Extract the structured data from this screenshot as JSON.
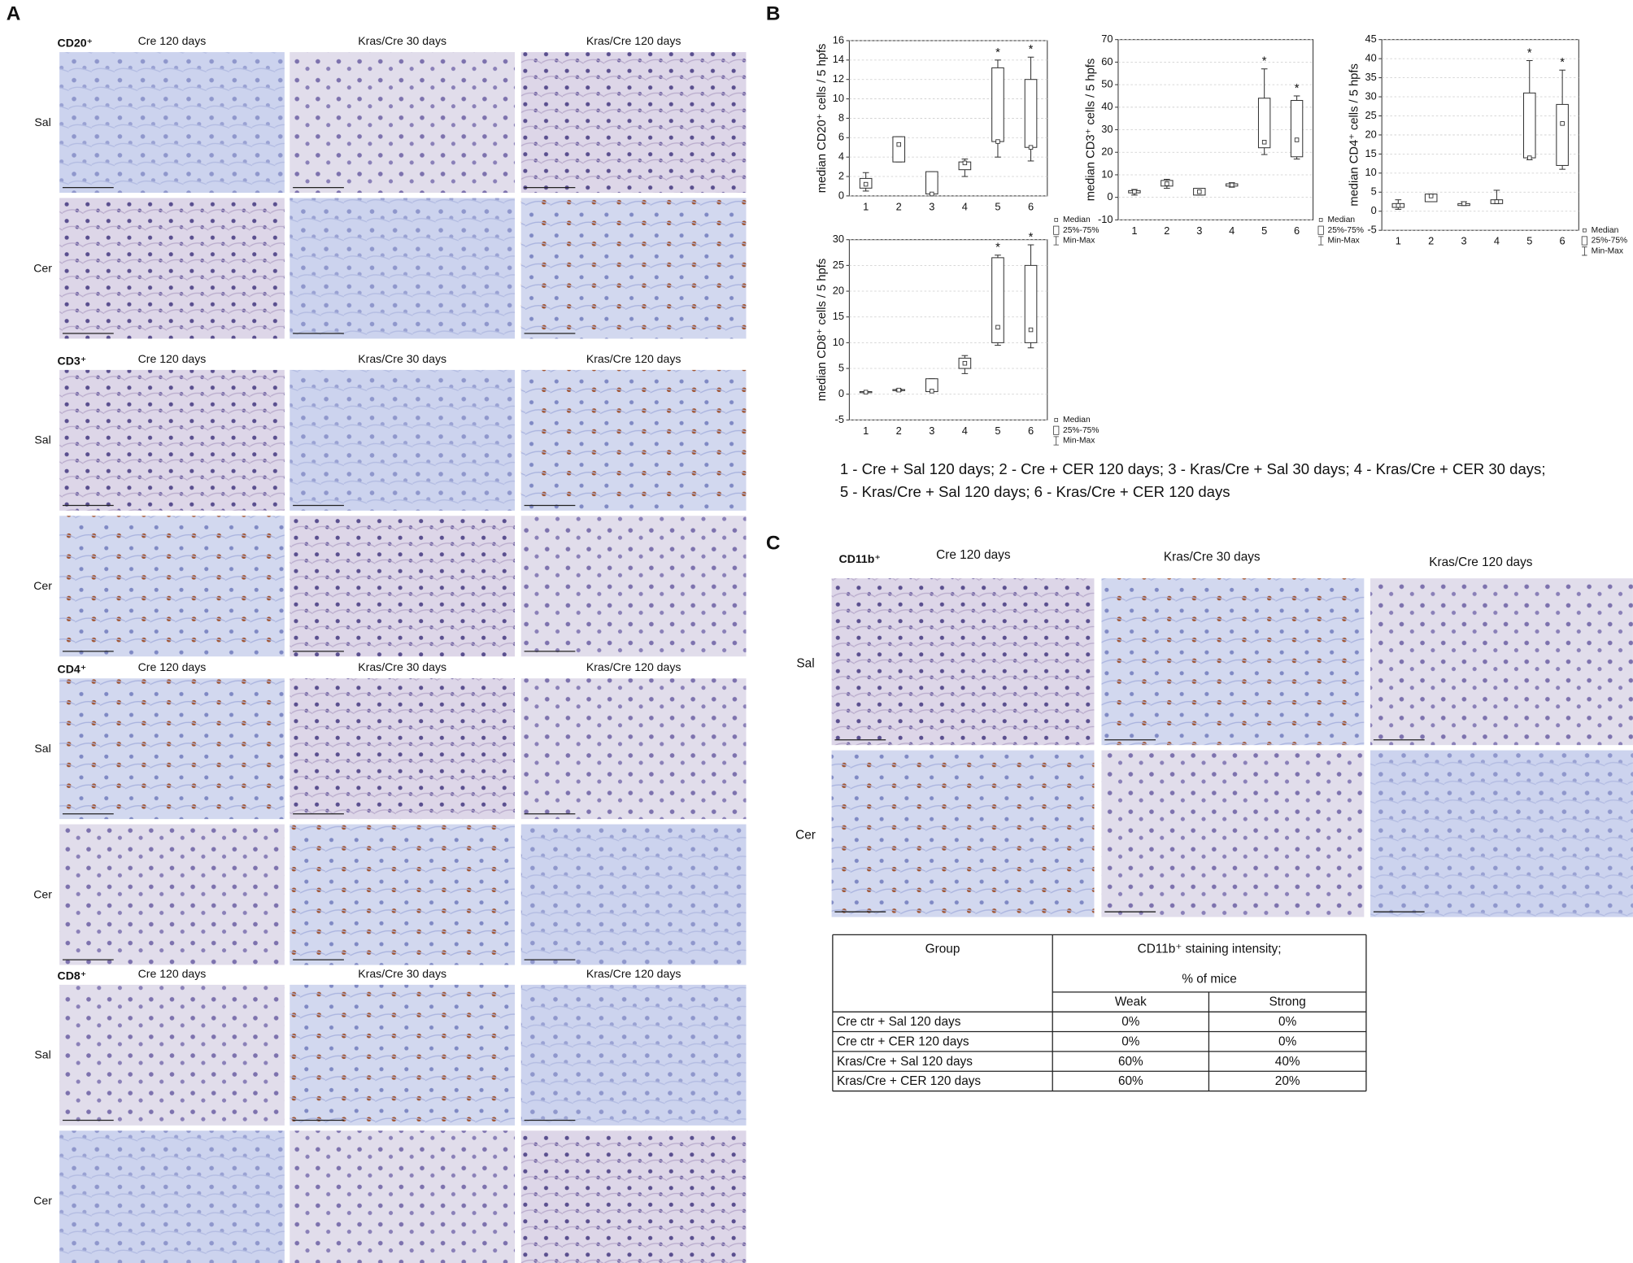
{
  "panel_a": {
    "label": "A",
    "sections": [
      {
        "marker": "CD20⁺",
        "columns": [
          "Cre 120 days",
          "Kras/Cre 30 days",
          "Kras/Cre 120 days"
        ],
        "rows": [
          "Sal",
          "Cer"
        ]
      },
      {
        "marker": "CD3⁺",
        "columns": [
          "Cre 120 days",
          "Kras/Cre 30 days",
          "Kras/Cre 120 days"
        ],
        "rows": [
          "Sal",
          "Cer"
        ]
      },
      {
        "marker": "CD4⁺",
        "columns": [
          "Cre 120 days",
          "Kras/Cre 30 days",
          "Kras/Cre 120 days"
        ],
        "rows": [
          "Sal",
          "Cer"
        ]
      },
      {
        "marker": "CD8⁺",
        "columns": [
          "Cre 120 days",
          "Kras/Cre 30 days",
          "Kras/Cre 120 days"
        ],
        "rows": [
          "Sal",
          "Cer"
        ]
      }
    ]
  },
  "panel_b": {
    "label": "B",
    "key": [
      "1 - Cre + Sal 120 days; 2 - Cre + CER 120 days;  3 - Kras/Cre + Sal 30 days; 4 - Kras/Cre + CER 30 days;",
      "5 - Kras/Cre + Sal 120 days; 6 - Kras/Cre + CER 120 days"
    ]
  },
  "chart_data": [
    {
      "type": "box",
      "ylabel": "median CD20⁺ cells / 5 hpfs",
      "categories": [
        "1",
        "2",
        "3",
        "4",
        "5",
        "6"
      ],
      "min": [
        0.5,
        3.5,
        0.2,
        2.0,
        4.0,
        3.6
      ],
      "q1": [
        0.8,
        3.5,
        0.2,
        2.7,
        5.6,
        5.0
      ],
      "median": [
        1.2,
        5.3,
        0.2,
        3.4,
        5.6,
        5.0
      ],
      "q3": [
        1.8,
        6.1,
        2.5,
        3.5,
        13.2,
        12.0
      ],
      "max": [
        2.4,
        6.1,
        2.5,
        3.8,
        14.0,
        14.3
      ],
      "ylim": [
        0,
        16
      ],
      "yticks": [
        0,
        2,
        4,
        6,
        8,
        10,
        12,
        14,
        16
      ],
      "grid": true,
      "legend": [
        "Median",
        "25%-75%",
        "Min-Max"
      ],
      "annotations": [
        {
          "x": "5",
          "text": "*"
        },
        {
          "x": "6",
          "text": "*"
        }
      ]
    },
    {
      "type": "box",
      "ylabel": "median CD3⁺ cells / 5 hpfs",
      "categories": [
        "1",
        "2",
        "3",
        "4",
        "5",
        "6"
      ],
      "min": [
        1,
        4,
        1,
        4.5,
        19,
        17
      ],
      "q1": [
        2,
        5,
        1,
        5,
        22,
        18
      ],
      "median": [
        2.5,
        6,
        2.5,
        5.5,
        24.5,
        25.5
      ],
      "q3": [
        3,
        7.5,
        4,
        6,
        44,
        43
      ],
      "max": [
        3.5,
        8,
        4,
        6.5,
        57,
        45
      ],
      "ylim": [
        -10,
        70
      ],
      "yticks": [
        -10,
        0,
        10,
        20,
        30,
        40,
        50,
        60,
        70
      ],
      "grid": true,
      "legend": [
        "Median",
        "25%-75%",
        "Min-Max"
      ],
      "annotations": [
        {
          "x": "5",
          "text": "*"
        },
        {
          "x": "6",
          "text": "*"
        }
      ]
    },
    {
      "type": "box",
      "ylabel": "median CD4⁺ cells / 5 hpfs",
      "categories": [
        "1",
        "2",
        "3",
        "4",
        "5",
        "6"
      ],
      "min": [
        0.5,
        2.5,
        1.5,
        2,
        13.5,
        11
      ],
      "q1": [
        1,
        2.5,
        1.5,
        2,
        14,
        12
      ],
      "median": [
        1.5,
        4,
        2,
        2.5,
        14,
        23
      ],
      "q3": [
        2,
        4.5,
        2,
        3,
        31,
        28
      ],
      "max": [
        3,
        4.5,
        2.5,
        5.5,
        39.5,
        37
      ],
      "ylim": [
        -5,
        45
      ],
      "yticks": [
        -5,
        0,
        5,
        10,
        15,
        20,
        25,
        30,
        35,
        40,
        45
      ],
      "grid": true,
      "legend": [
        "Median",
        "25%-75%",
        "Min-Max"
      ],
      "annotations": [
        {
          "x": "5",
          "text": "*"
        },
        {
          "x": "6",
          "text": "*"
        }
      ]
    },
    {
      "type": "box",
      "ylabel": "median CD8⁺ cells / 5 hpfs",
      "categories": [
        "1",
        "2",
        "3",
        "4",
        "5",
        "6"
      ],
      "min": [
        0.3,
        0.6,
        0.5,
        4,
        9.5,
        9
      ],
      "q1": [
        0.3,
        0.7,
        0.5,
        5,
        10,
        10
      ],
      "median": [
        0.4,
        0.8,
        0.6,
        6,
        13,
        12.5
      ],
      "q3": [
        0.5,
        0.9,
        3,
        7,
        26.5,
        25
      ],
      "max": [
        0.5,
        1.0,
        3,
        7.5,
        27,
        29
      ],
      "ylim": [
        -5,
        30
      ],
      "yticks": [
        -5,
        0,
        5,
        10,
        15,
        20,
        25,
        30
      ],
      "grid": true,
      "legend": [
        "Median",
        "25%-75%",
        "Min-Max"
      ],
      "annotations": [
        {
          "x": "5",
          "text": "*"
        },
        {
          "x": "6",
          "text": "*"
        }
      ]
    }
  ],
  "panel_c": {
    "label": "C",
    "marker": "CD11b⁺",
    "columns": [
      "Cre 120 days",
      "Kras/Cre 30 days",
      "Kras/Cre 120 days"
    ],
    "rows": [
      "Sal",
      "Cer"
    ],
    "table": {
      "header": [
        "Group",
        "CD11b⁺ staining intensity;",
        "% of mice"
      ],
      "subheader": [
        "Weak",
        "Strong"
      ],
      "rows": [
        [
          "Cre ctr + Sal 120 days",
          "0%",
          "0%"
        ],
        [
          "Cre ctr + CER 120 days",
          "0%",
          "0%"
        ],
        [
          "Kras/Cre + Sal 120 days",
          "60%",
          "40%"
        ],
        [
          "Kras/Cre + CER 120 days",
          "60%",
          "20%"
        ]
      ]
    }
  }
}
